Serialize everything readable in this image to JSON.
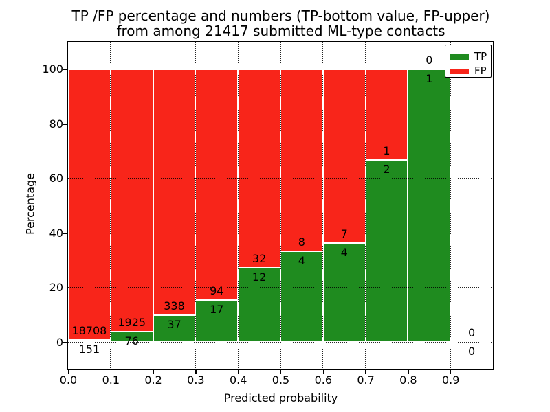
{
  "figure": {
    "title_line1": "TP /FP percentage and numbers (TP-bottom value, FP-upper)",
    "title_line2": "from among 21417 submitted ML-type contacts",
    "xlabel": "Predicted probability",
    "ylabel": "Percentage",
    "total_contacts": "21417"
  },
  "colors": {
    "tp": "#1f8b1f",
    "fp": "#f8251a",
    "bar_edge": "#ffffff",
    "axis": "#000000",
    "background": "#ffffff"
  },
  "legend": {
    "position": "upper right",
    "items": [
      {
        "label": "TP",
        "color": "#1f8b1f"
      },
      {
        "label": "FP",
        "color": "#f8251a"
      }
    ]
  },
  "chart_data": {
    "type": "bar",
    "stacked": true,
    "normalized_to_percent": true,
    "title": "TP /FP percentage and numbers (TP-bottom value, FP-upper)\nfrom among 21417 submitted ML-type contacts",
    "xlabel": "Predicted probability",
    "ylabel": "Percentage",
    "xlim": [
      0.0,
      1.0
    ],
    "ylim": [
      -10,
      110
    ],
    "grid": "dotted",
    "legend_position": "upper right",
    "x_ticks": [
      {
        "label": "0.0",
        "value": 0.0
      },
      {
        "label": "0.1",
        "value": 0.1
      },
      {
        "label": "0.2",
        "value": 0.2
      },
      {
        "label": "0.3",
        "value": 0.3
      },
      {
        "label": "0.4",
        "value": 0.4
      },
      {
        "label": "0.5",
        "value": 0.5
      },
      {
        "label": "0.6",
        "value": 0.6
      },
      {
        "label": "0.7",
        "value": 0.7
      },
      {
        "label": "0.8",
        "value": 0.8
      },
      {
        "label": "0.9",
        "value": 0.9
      }
    ],
    "y_ticks": [
      {
        "label": "0",
        "value": 0
      },
      {
        "label": "20",
        "value": 20
      },
      {
        "label": "40",
        "value": 40
      },
      {
        "label": "60",
        "value": 60
      },
      {
        "label": "80",
        "value": 80
      },
      {
        "label": "100",
        "value": 100
      }
    ],
    "bins": [
      {
        "range": [
          0.0,
          0.1
        ],
        "tp": 151,
        "fp": 18708,
        "tp_percent": 0.8,
        "fp_percent": 99.2
      },
      {
        "range": [
          0.1,
          0.2
        ],
        "tp": 76,
        "fp": 1925,
        "tp_percent": 3.8,
        "fp_percent": 96.2
      },
      {
        "range": [
          0.2,
          0.3
        ],
        "tp": 37,
        "fp": 338,
        "tp_percent": 9.87,
        "fp_percent": 90.13
      },
      {
        "range": [
          0.3,
          0.4
        ],
        "tp": 17,
        "fp": 94,
        "tp_percent": 15.32,
        "fp_percent": 84.68
      },
      {
        "range": [
          0.4,
          0.5
        ],
        "tp": 12,
        "fp": 32,
        "tp_percent": 27.27,
        "fp_percent": 72.73
      },
      {
        "range": [
          0.5,
          0.6
        ],
        "tp": 4,
        "fp": 8,
        "tp_percent": 33.33,
        "fp_percent": 66.67
      },
      {
        "range": [
          0.6,
          0.7
        ],
        "tp": 4,
        "fp": 7,
        "tp_percent": 36.36,
        "fp_percent": 63.64
      },
      {
        "range": [
          0.7,
          0.8
        ],
        "tp": 2,
        "fp": 1,
        "tp_percent": 66.67,
        "fp_percent": 33.33
      },
      {
        "range": [
          0.8,
          0.9
        ],
        "tp": 1,
        "fp": 0,
        "tp_percent": 100.0,
        "fp_percent": 0.0
      },
      {
        "range": [
          0.9,
          1.0
        ],
        "tp": 0,
        "fp": 0,
        "tp_percent": 0.0,
        "fp_percent": 0.0
      }
    ]
  }
}
